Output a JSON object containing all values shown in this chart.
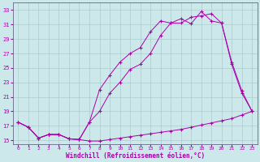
{
  "xlabel": "Windchill (Refroidissement éolien,°C)",
  "bg_color": "#cde8ea",
  "grid_color": "#aacccc",
  "line_color": "#aa00aa",
  "xlim": [
    -0.5,
    23.5
  ],
  "ylim": [
    14.5,
    34.0
  ],
  "xticks": [
    0,
    1,
    2,
    3,
    4,
    5,
    6,
    7,
    8,
    9,
    10,
    11,
    12,
    13,
    14,
    15,
    16,
    17,
    18,
    19,
    20,
    21,
    22,
    23
  ],
  "yticks": [
    15,
    17,
    19,
    21,
    23,
    25,
    27,
    29,
    31,
    33
  ],
  "line1_x": [
    0,
    1,
    2,
    3,
    4,
    5,
    6,
    7,
    8,
    9,
    10,
    11,
    12,
    13,
    14,
    15,
    16,
    17,
    18,
    19,
    20,
    21,
    22,
    23
  ],
  "line1_y": [
    17.5,
    16.8,
    15.3,
    15.8,
    15.8,
    15.2,
    15.1,
    14.9,
    14.9,
    15.1,
    15.3,
    15.5,
    15.7,
    15.9,
    16.1,
    16.3,
    16.5,
    16.8,
    17.1,
    17.4,
    17.7,
    18.0,
    18.5,
    19.0
  ],
  "line2_x": [
    0,
    1,
    2,
    3,
    4,
    5,
    6,
    7,
    8,
    9,
    10,
    11,
    12,
    13,
    14,
    15,
    16,
    17,
    18,
    19,
    20,
    21,
    22,
    23
  ],
  "line2_y": [
    17.5,
    16.8,
    15.3,
    15.8,
    15.8,
    15.2,
    15.1,
    17.5,
    19.0,
    21.5,
    23.0,
    24.8,
    25.5,
    27.0,
    29.5,
    31.2,
    31.8,
    31.1,
    32.8,
    31.5,
    31.2,
    25.5,
    21.5,
    19.0
  ],
  "line3_x": [
    0,
    1,
    2,
    3,
    4,
    5,
    6,
    7,
    8,
    9,
    10,
    11,
    12,
    13,
    14,
    15,
    16,
    17,
    18,
    19,
    20,
    21,
    22,
    23
  ],
  "line3_y": [
    17.5,
    16.8,
    15.3,
    15.8,
    15.8,
    15.2,
    15.1,
    17.5,
    22.0,
    24.0,
    25.8,
    27.0,
    27.8,
    30.0,
    31.5,
    31.2,
    31.2,
    32.0,
    32.2,
    32.5,
    31.2,
    25.8,
    21.8,
    19.0
  ]
}
